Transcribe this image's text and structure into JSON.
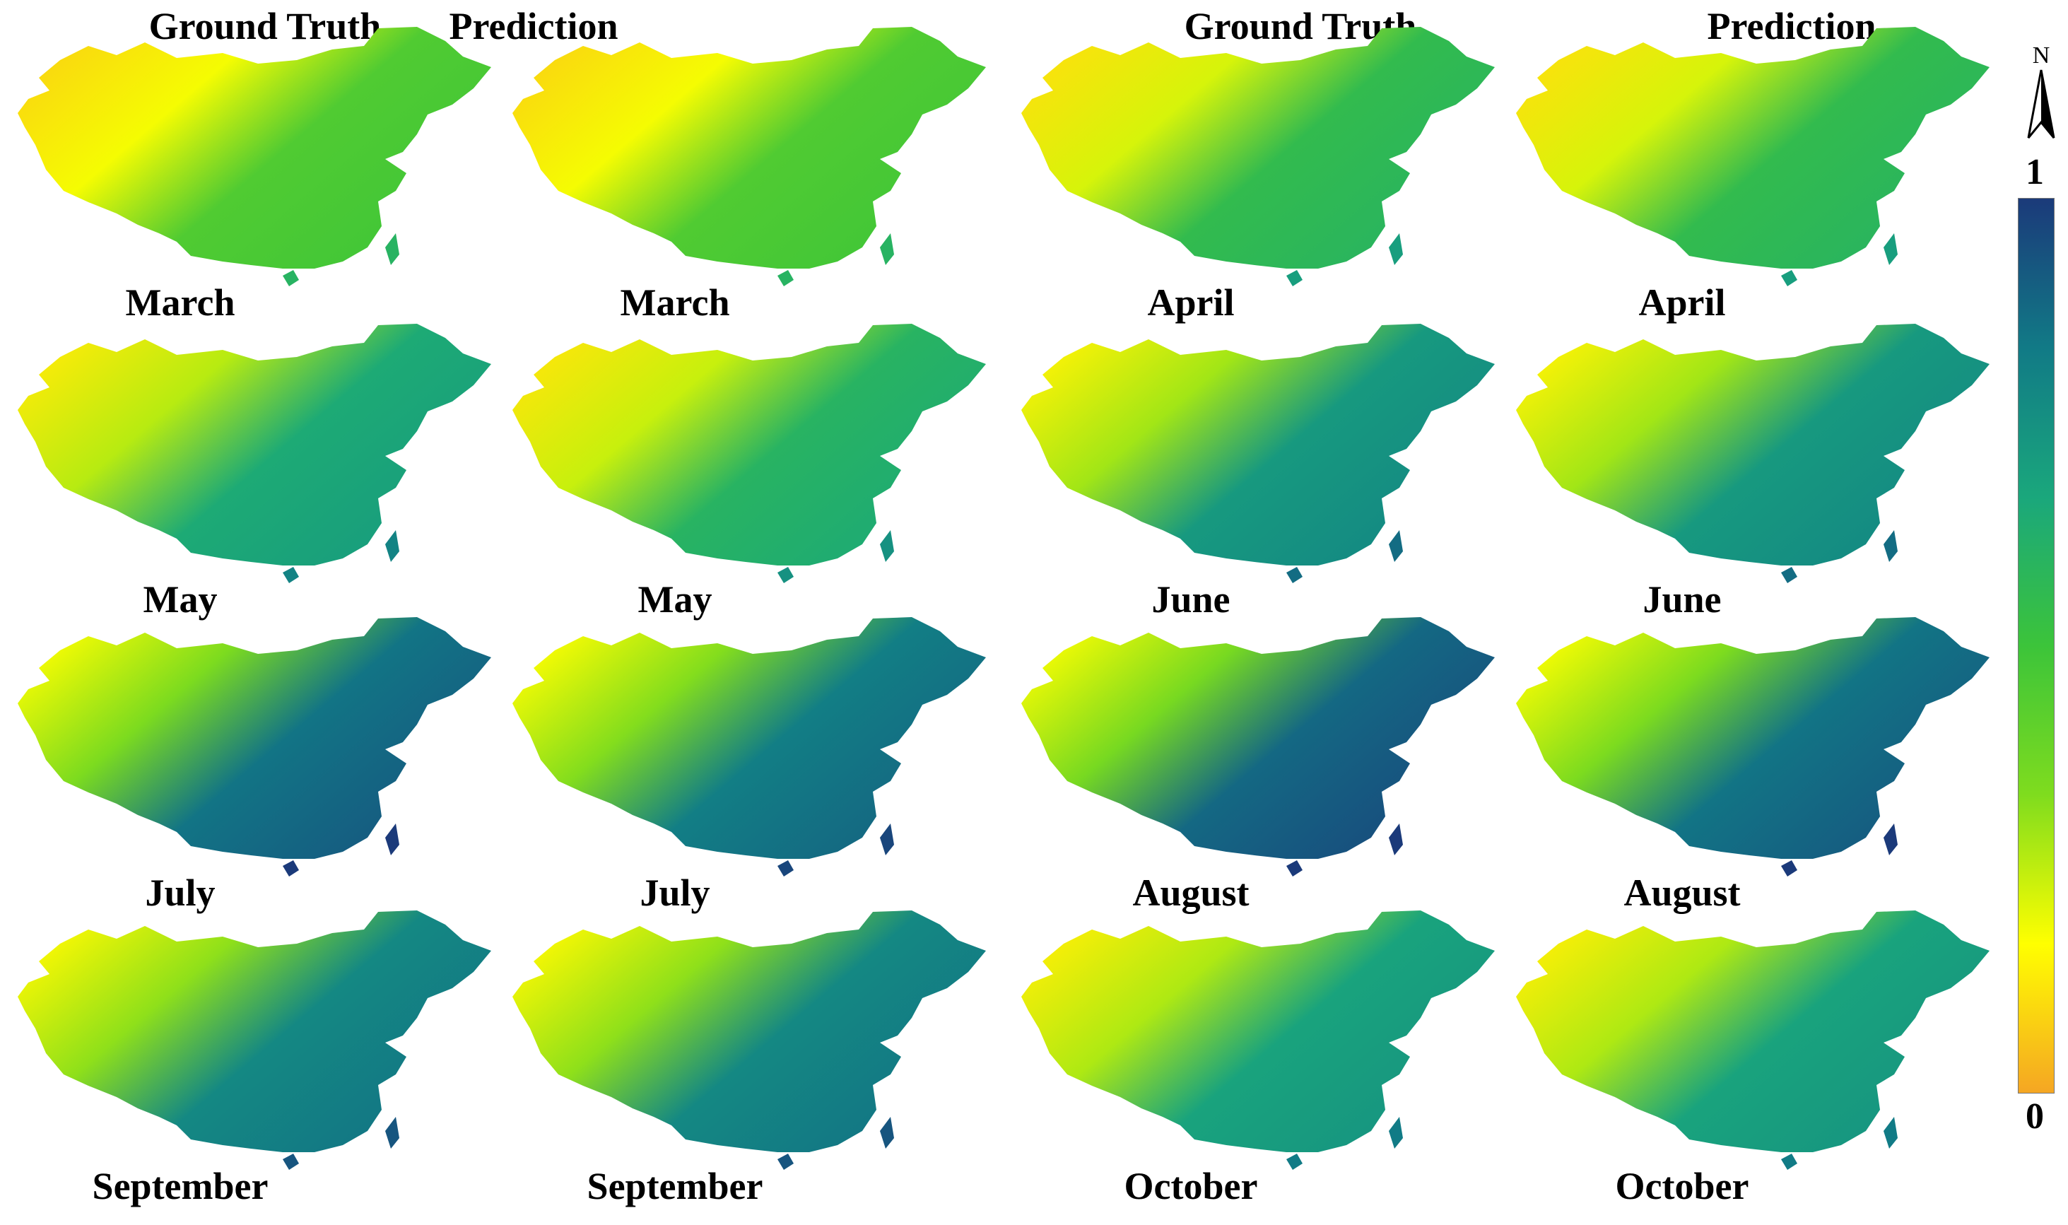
{
  "column_headers": [
    "Ground Truth",
    "Prediction",
    "Ground Truth",
    "Prediction"
  ],
  "colorbar": {
    "max_label": "1",
    "min_label": "0",
    "stops": [
      "#1b3a7a",
      "#117a86",
      "#1aa77c",
      "#3cc43a",
      "#7fdc1e",
      "#ffff00",
      "#f5a623"
    ]
  },
  "north_arrow": {
    "label": "N"
  },
  "panels": [
    {
      "month": "March",
      "type": "Ground Truth",
      "value": 0.45
    },
    {
      "month": "March",
      "type": "Prediction",
      "value": 0.45
    },
    {
      "month": "April",
      "type": "Ground Truth",
      "value": 0.55
    },
    {
      "month": "April",
      "type": "Prediction",
      "value": 0.55
    },
    {
      "month": "May",
      "type": "Ground Truth",
      "value": 0.65
    },
    {
      "month": "May",
      "type": "Prediction",
      "value": 0.6
    },
    {
      "month": "June",
      "type": "Ground Truth",
      "value": 0.72
    },
    {
      "month": "June",
      "type": "Prediction",
      "value": 0.72
    },
    {
      "month": "July",
      "type": "Ground Truth",
      "value": 0.85
    },
    {
      "month": "July",
      "type": "Prediction",
      "value": 0.82
    },
    {
      "month": "August",
      "type": "Ground Truth",
      "value": 0.88
    },
    {
      "month": "August",
      "type": "Prediction",
      "value": 0.85
    },
    {
      "month": "September",
      "type": "Ground Truth",
      "value": 0.78
    },
    {
      "month": "September",
      "type": "Prediction",
      "value": 0.78
    },
    {
      "month": "October",
      "type": "Ground Truth",
      "value": 0.68
    },
    {
      "month": "October",
      "type": "Prediction",
      "value": 0.68
    }
  ]
}
